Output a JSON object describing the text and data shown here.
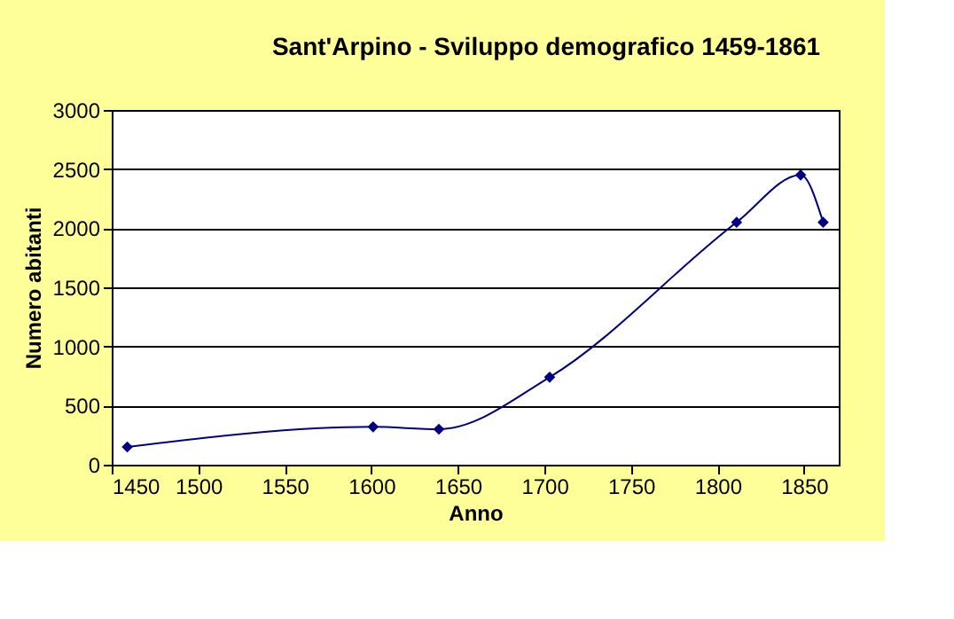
{
  "chart_data": {
    "type": "line",
    "title": "Sant'Arpino - Sviluppo demografico 1459-1861",
    "xlabel": "Anno",
    "ylabel": "Numero abitanti",
    "x": [
      1459,
      1601,
      1639,
      1703,
      1811,
      1848,
      1861
    ],
    "series": [
      {
        "color": "#000080",
        "values": [
          150,
          320,
          300,
          740,
          2050,
          2450,
          2050
        ]
      }
    ],
    "xlim": [
      1450,
      1870
    ],
    "xticks": [
      1450,
      1500,
      1550,
      1600,
      1650,
      1700,
      1750,
      1800,
      1850
    ],
    "ylim": [
      0,
      3000
    ],
    "yticks": [
      0,
      500,
      1000,
      1500,
      2000,
      2500,
      3000
    ],
    "grid": "y",
    "marker": "diamond",
    "line_style": "solid"
  }
}
